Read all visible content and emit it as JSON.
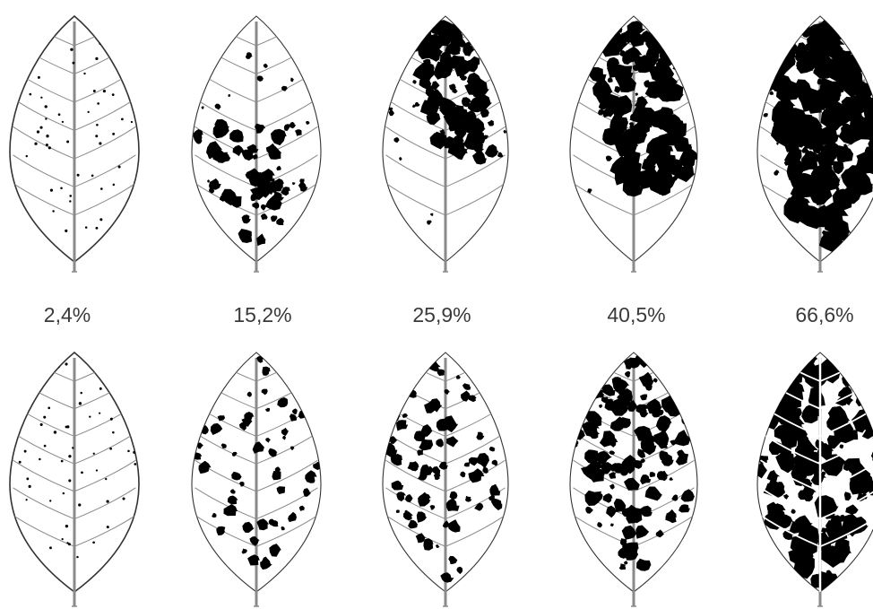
{
  "figure": {
    "severity_levels": [
      {
        "label": "2,4%",
        "value": 2.4
      },
      {
        "label": "15,2%",
        "value": 15.2
      },
      {
        "label": "25,9%",
        "value": 25.9
      },
      {
        "label": "40,5%",
        "value": 40.5
      },
      {
        "label": "66,6%",
        "value": 66.6
      }
    ],
    "rows": [
      {
        "pattern": "single-large-lesion"
      },
      {
        "pattern": "scattered-lesions"
      }
    ],
    "colors": {
      "leaf_outline": "#333333",
      "vein": "#8a8a8a",
      "lesion": "#000000",
      "background": "#ffffff",
      "label": "#3a3a3a"
    }
  }
}
